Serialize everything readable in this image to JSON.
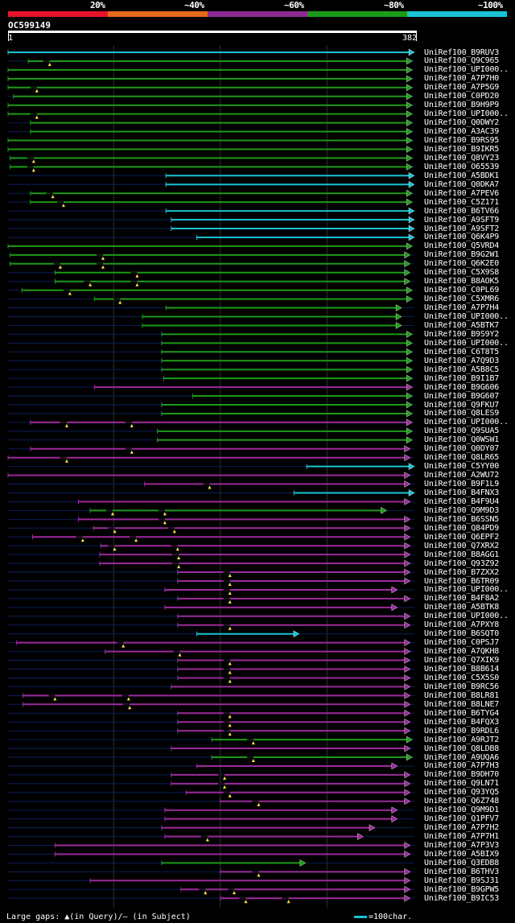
{
  "legend": {
    "labels": [
      "20%",
      "~40%",
      "~60%",
      "~80%",
      "~100%"
    ],
    "colors": [
      "#e8132b",
      "#e56a1e",
      "#8c2a90",
      "#1c9b17",
      "#19c3d3"
    ]
  },
  "query": {
    "id": "OC599149",
    "start": "1",
    "end": "382",
    "length": 382
  },
  "footer": {
    "gap_text": "Large gaps: ▲(in Query)/– (in Subject)",
    "scale_text": "=100char."
  },
  "hits": [
    {
      "label": "UniRef100_B9RUV3",
      "color": "cyan",
      "start": 1,
      "end": 382,
      "arrow": true,
      "gaps": []
    },
    {
      "label": "UniRef100_Q9C965",
      "color": "green",
      "start": 20,
      "end": 380,
      "arrow": true,
      "gaps": [
        40
      ]
    },
    {
      "label": "UniRef100_UPI000..",
      "color": "green",
      "start": 1,
      "end": 380,
      "arrow": true,
      "gaps": []
    },
    {
      "label": "UniRef100_A7P7H0",
      "color": "green",
      "start": 1,
      "end": 380,
      "arrow": true,
      "gaps": []
    },
    {
      "label": "UniRef100_A7P5G9",
      "color": "green",
      "start": 1,
      "end": 380,
      "arrow": true,
      "gaps": [
        28
      ]
    },
    {
      "label": "UniRef100_C0PD20",
      "color": "green",
      "start": 6,
      "end": 380,
      "arrow": true,
      "gaps": []
    },
    {
      "label": "UniRef100_B9H9P9",
      "color": "green",
      "start": 1,
      "end": 380,
      "arrow": true,
      "gaps": []
    },
    {
      "label": "UniRef100_UPI000..",
      "color": "green",
      "start": 1,
      "end": 380,
      "arrow": true,
      "gaps": [
        28
      ]
    },
    {
      "label": "UniRef100_Q0DWY2",
      "color": "green",
      "start": 22,
      "end": 380,
      "arrow": true,
      "gaps": []
    },
    {
      "label": "UniRef100_A3AC39",
      "color": "green",
      "start": 22,
      "end": 380,
      "arrow": true,
      "gaps": []
    },
    {
      "label": "UniRef100_B9RS95",
      "color": "green",
      "start": 1,
      "end": 380,
      "arrow": true,
      "gaps": []
    },
    {
      "label": "UniRef100_B9IKR5",
      "color": "green",
      "start": 1,
      "end": 380,
      "arrow": true,
      "gaps": []
    },
    {
      "label": "UniRef100_Q8VY23",
      "color": "green",
      "start": 3,
      "end": 380,
      "arrow": true,
      "gaps": [
        25
      ]
    },
    {
      "label": "UniRef100_O65539",
      "color": "green",
      "start": 3,
      "end": 380,
      "arrow": true,
      "gaps": [
        25
      ]
    },
    {
      "label": "UniRef100_A5BDK1",
      "color": "cyan",
      "start": 149,
      "end": 382,
      "arrow": true,
      "gaps": []
    },
    {
      "label": "UniRef100_Q0DKA7",
      "color": "cyan",
      "start": 149,
      "end": 382,
      "arrow": true,
      "gaps": []
    },
    {
      "label": "UniRef100_A7PEV6",
      "color": "green",
      "start": 22,
      "end": 380,
      "arrow": true,
      "gaps": [
        43
      ]
    },
    {
      "label": "UniRef100_C5Z171",
      "color": "green",
      "start": 22,
      "end": 380,
      "arrow": true,
      "gaps": [
        53
      ]
    },
    {
      "label": "UniRef100_B6TV66",
      "color": "cyan",
      "start": 149,
      "end": 382,
      "arrow": true,
      "gaps": []
    },
    {
      "label": "UniRef100_A9SFT9",
      "color": "cyan",
      "start": 154,
      "end": 382,
      "arrow": true,
      "gaps": []
    },
    {
      "label": "UniRef100_A9SFT2",
      "color": "cyan",
      "start": 154,
      "end": 382,
      "arrow": true,
      "gaps": []
    },
    {
      "label": "UniRef100_Q6K4P9",
      "color": "cyan",
      "start": 178,
      "end": 382,
      "arrow": true,
      "gaps": []
    },
    {
      "label": "UniRef100_Q5VRD4",
      "color": "green",
      "start": 1,
      "end": 380,
      "arrow": true,
      "gaps": []
    },
    {
      "label": "UniRef100_B9G2W1",
      "color": "green",
      "start": 3,
      "end": 378,
      "arrow": true,
      "gaps": [
        90
      ]
    },
    {
      "label": "UniRef100_Q6K2E0",
      "color": "green",
      "start": 3,
      "end": 378,
      "arrow": true,
      "gaps": [
        50,
        90
      ]
    },
    {
      "label": "UniRef100_C5X9S8",
      "color": "green",
      "start": 45,
      "end": 378,
      "arrow": true,
      "gaps": [
        122
      ]
    },
    {
      "label": "UniRef100_B8AOK5",
      "color": "green",
      "start": 45,
      "end": 378,
      "arrow": true,
      "gaps": [
        78,
        122
      ]
    },
    {
      "label": "UniRef100_C0PL69",
      "color": "green",
      "start": 14,
      "end": 380,
      "arrow": true,
      "gaps": [
        59
      ]
    },
    {
      "label": "UniRef100_C5XMR6",
      "color": "green",
      "start": 82,
      "end": 380,
      "arrow": true,
      "gaps": [
        106
      ]
    },
    {
      "label": "UniRef100_A7P7H4",
      "color": "green",
      "start": 149,
      "end": 370,
      "arrow": true,
      "gaps": []
    },
    {
      "label": "UniRef100_UPI000..",
      "color": "green",
      "start": 127,
      "end": 370,
      "arrow": true,
      "gaps": []
    },
    {
      "label": "UniRef100_A5BTK7",
      "color": "green",
      "start": 127,
      "end": 370,
      "arrow": true,
      "gaps": []
    },
    {
      "label": "UniRef100_B9S9Y2",
      "color": "green",
      "start": 145,
      "end": 380,
      "arrow": true,
      "gaps": []
    },
    {
      "label": "UniRef100_UPI000..",
      "color": "green",
      "start": 145,
      "end": 380,
      "arrow": true,
      "gaps": []
    },
    {
      "label": "UniRef100_C6T8T5",
      "color": "green",
      "start": 145,
      "end": 380,
      "arrow": true,
      "gaps": []
    },
    {
      "label": "UniRef100_A7Q9D3",
      "color": "green",
      "start": 145,
      "end": 380,
      "arrow": true,
      "gaps": []
    },
    {
      "label": "UniRef100_A5B8C5",
      "color": "green",
      "start": 145,
      "end": 380,
      "arrow": true,
      "gaps": []
    },
    {
      "label": "UniRef100_B9I1B7",
      "color": "green",
      "start": 147,
      "end": 380,
      "arrow": true,
      "gaps": []
    },
    {
      "label": "UniRef100_B9G606",
      "color": "purple",
      "start": 82,
      "end": 380,
      "arrow": true,
      "gaps": []
    },
    {
      "label": "UniRef100_B9G607",
      "color": "green",
      "start": 174,
      "end": 380,
      "arrow": true,
      "gaps": []
    },
    {
      "label": "UniRef100_Q9FKU7",
      "color": "green",
      "start": 145,
      "end": 380,
      "arrow": true,
      "gaps": []
    },
    {
      "label": "UniRef100_Q8LES9",
      "color": "green",
      "start": 145,
      "end": 380,
      "arrow": true,
      "gaps": []
    },
    {
      "label": "UniRef100_UPI000..",
      "color": "purple",
      "start": 22,
      "end": 380,
      "arrow": true,
      "gaps": [
        56,
        117
      ]
    },
    {
      "label": "UniRef100_Q9SUA5",
      "color": "green",
      "start": 141,
      "end": 380,
      "arrow": true,
      "gaps": []
    },
    {
      "label": "UniRef100_Q0WSW1",
      "color": "green",
      "start": 141,
      "end": 380,
      "arrow": true,
      "gaps": []
    },
    {
      "label": "UniRef100_Q0DY07",
      "color": "purple",
      "start": 22,
      "end": 378,
      "arrow": true,
      "gaps": [
        117
      ]
    },
    {
      "label": "UniRef100_Q8LR65",
      "color": "purple",
      "start": 1,
      "end": 378,
      "arrow": true,
      "gaps": [
        56
      ]
    },
    {
      "label": "UniRef100_C5YY00",
      "color": "cyan",
      "start": 281,
      "end": 382,
      "arrow": true,
      "gaps": []
    },
    {
      "label": "UniRef100_A2WU72",
      "color": "purple",
      "start": 1,
      "end": 378,
      "arrow": true,
      "gaps": []
    },
    {
      "label": "UniRef100_B9F1L9",
      "color": "purple",
      "start": 129,
      "end": 378,
      "arrow": true,
      "gaps": [
        190
      ]
    },
    {
      "label": "UniRef100_B4FNX3",
      "color": "cyan",
      "start": 269,
      "end": 382,
      "arrow": true,
      "gaps": []
    },
    {
      "label": "UniRef100_B4F9U4",
      "color": "purple",
      "start": 67,
      "end": 378,
      "arrow": true,
      "gaps": []
    },
    {
      "label": "UniRef100_Q9M9D3",
      "color": "green",
      "start": 78,
      "end": 356,
      "arrow": true,
      "gaps": [
        99,
        148
      ]
    },
    {
      "label": "UniRef100_B6SSN5",
      "color": "purple",
      "start": 67,
      "end": 378,
      "arrow": true,
      "gaps": [
        148
      ]
    },
    {
      "label": "UniRef100_Q84PD9",
      "color": "purple",
      "start": 81,
      "end": 378,
      "arrow": true,
      "gaps": [
        101,
        157
      ]
    },
    {
      "label": "UniRef100_Q6EPF2",
      "color": "purple",
      "start": 24,
      "end": 378,
      "arrow": true,
      "gaps": [
        71,
        121
      ]
    },
    {
      "label": "UniRef100_Q7XRX2",
      "color": "purple",
      "start": 88,
      "end": 378,
      "arrow": true,
      "gaps": [
        101,
        160
      ]
    },
    {
      "label": "UniRef100_B8AGG1",
      "color": "purple",
      "start": 87,
      "end": 378,
      "arrow": true,
      "gaps": [
        161
      ]
    },
    {
      "label": "UniRef100_Q93Z92",
      "color": "purple",
      "start": 87,
      "end": 378,
      "arrow": true,
      "gaps": [
        161
      ]
    },
    {
      "label": "UniRef100_B7ZXX2",
      "color": "purple",
      "start": 160,
      "end": 378,
      "arrow": true,
      "gaps": [
        209
      ]
    },
    {
      "label": "UniRef100_B6TR09",
      "color": "purple",
      "start": 160,
      "end": 378,
      "arrow": true,
      "gaps": [
        209
      ]
    },
    {
      "label": "UniRef100_UPI000..",
      "color": "purple",
      "start": 148,
      "end": 366,
      "arrow": true,
      "gaps": [
        209
      ]
    },
    {
      "label": "UniRef100_B4F8A2",
      "color": "purple",
      "start": 160,
      "end": 378,
      "arrow": true,
      "gaps": [
        209
      ]
    },
    {
      "label": "UniRef100_A5BTK8",
      "color": "purple",
      "start": 148,
      "end": 366,
      "arrow": true,
      "gaps": []
    },
    {
      "label": "UniRef100_UPI000..",
      "color": "purple",
      "start": 160,
      "end": 378,
      "arrow": true,
      "gaps": []
    },
    {
      "label": "UniRef100_A7PXY8",
      "color": "purple",
      "start": 160,
      "end": 378,
      "arrow": true,
      "gaps": [
        209
      ]
    },
    {
      "label": "UniRef100_B6SQT0",
      "color": "cyan",
      "start": 178,
      "end": 274,
      "arrow": true,
      "gaps": []
    },
    {
      "label": "UniRef100_C0PSJ7",
      "color": "purple",
      "start": 9,
      "end": 378,
      "arrow": true,
      "gaps": [
        109
      ]
    },
    {
      "label": "UniRef100_A7QKH8",
      "color": "purple",
      "start": 92,
      "end": 378,
      "arrow": true,
      "gaps": [
        162
      ]
    },
    {
      "label": "UniRef100_Q7XIK9",
      "color": "purple",
      "start": 160,
      "end": 378,
      "arrow": true,
      "gaps": [
        209
      ]
    },
    {
      "label": "UniRef100_B8B614",
      "color": "purple",
      "start": 160,
      "end": 378,
      "arrow": true,
      "gaps": [
        209
      ]
    },
    {
      "label": "UniRef100_C5X5S0",
      "color": "purple",
      "start": 160,
      "end": 378,
      "arrow": true,
      "gaps": [
        209
      ]
    },
    {
      "label": "UniRef100_B9RC56",
      "color": "purple",
      "start": 154,
      "end": 378,
      "arrow": true,
      "gaps": []
    },
    {
      "label": "UniRef100_B8LR81",
      "color": "purple",
      "start": 15,
      "end": 378,
      "arrow": true,
      "gaps": [
        45,
        114
      ]
    },
    {
      "label": "UniRef100_B8LNE7",
      "color": "purple",
      "start": 15,
      "end": 378,
      "arrow": true,
      "gaps": [
        115
      ]
    },
    {
      "label": "UniRef100_B6TYG4",
      "color": "purple",
      "start": 160,
      "end": 378,
      "arrow": true,
      "gaps": [
        209
      ]
    },
    {
      "label": "UniRef100_B4FQX3",
      "color": "purple",
      "start": 160,
      "end": 378,
      "arrow": true,
      "gaps": [
        209
      ]
    },
    {
      "label": "UniRef100_B9RDL6",
      "color": "purple",
      "start": 160,
      "end": 378,
      "arrow": true,
      "gaps": [
        209
      ]
    },
    {
      "label": "UniRef100_A9RJT2",
      "color": "green",
      "start": 192,
      "end": 380,
      "arrow": true,
      "gaps": [
        231
      ]
    },
    {
      "label": "UniRef100_Q8LDB8",
      "color": "purple",
      "start": 154,
      "end": 378,
      "arrow": true,
      "gaps": []
    },
    {
      "label": "UniRef100_A9UQA6",
      "color": "green",
      "start": 192,
      "end": 380,
      "arrow": true,
      "gaps": [
        231
      ]
    },
    {
      "label": "UniRef100_A7P7H3",
      "color": "purple",
      "start": 178,
      "end": 366,
      "arrow": true,
      "gaps": []
    },
    {
      "label": "UniRef100_B9DH70",
      "color": "purple",
      "start": 154,
      "end": 378,
      "arrow": true,
      "gaps": [
        204
      ]
    },
    {
      "label": "UniRef100_Q9LN71",
      "color": "purple",
      "start": 154,
      "end": 378,
      "arrow": true,
      "gaps": [
        204
      ]
    },
    {
      "label": "UniRef100_Q93YQ5",
      "color": "purple",
      "start": 168,
      "end": 378,
      "arrow": true,
      "gaps": [
        209
      ]
    },
    {
      "label": "UniRef100_Q6Z748",
      "color": "purple",
      "start": 200,
      "end": 378,
      "arrow": true,
      "gaps": [
        236
      ]
    },
    {
      "label": "UniRef100_Q9M9D1",
      "color": "purple",
      "start": 148,
      "end": 366,
      "arrow": true,
      "gaps": []
    },
    {
      "label": "UniRef100_Q1PFV7",
      "color": "purple",
      "start": 148,
      "end": 366,
      "arrow": true,
      "gaps": []
    },
    {
      "label": "UniRef100_A7P7H2",
      "color": "purple",
      "start": 145,
      "end": 345,
      "arrow": true,
      "gaps": []
    },
    {
      "label": "UniRef100_A7P7H1",
      "color": "purple",
      "start": 148,
      "end": 334,
      "arrow": true,
      "gaps": [
        188
      ]
    },
    {
      "label": "UniRef100_A7P3V3",
      "color": "purple",
      "start": 45,
      "end": 378,
      "arrow": true,
      "gaps": []
    },
    {
      "label": "UniRef100_A5BIX9",
      "color": "purple",
      "start": 45,
      "end": 378,
      "arrow": true,
      "gaps": []
    },
    {
      "label": "UniRef100_Q3EDB8",
      "color": "green",
      "start": 145,
      "end": 280,
      "arrow": true,
      "gaps": []
    },
    {
      "label": "UniRef100_B6THV3",
      "color": "purple",
      "start": 200,
      "end": 378,
      "arrow": true,
      "gaps": [
        236
      ]
    },
    {
      "label": "UniRef100_B9SJ31",
      "color": "purple",
      "start": 78,
      "end": 378,
      "arrow": true,
      "gaps": []
    },
    {
      "label": "UniRef100_B9GPW5",
      "color": "purple",
      "start": 163,
      "end": 378,
      "arrow": true,
      "gaps": [
        186,
        213
      ]
    },
    {
      "label": "UniRef100_B9IC53",
      "color": "purple",
      "start": 200,
      "end": 378,
      "arrow": true,
      "gaps": [
        224,
        264
      ]
    }
  ]
}
